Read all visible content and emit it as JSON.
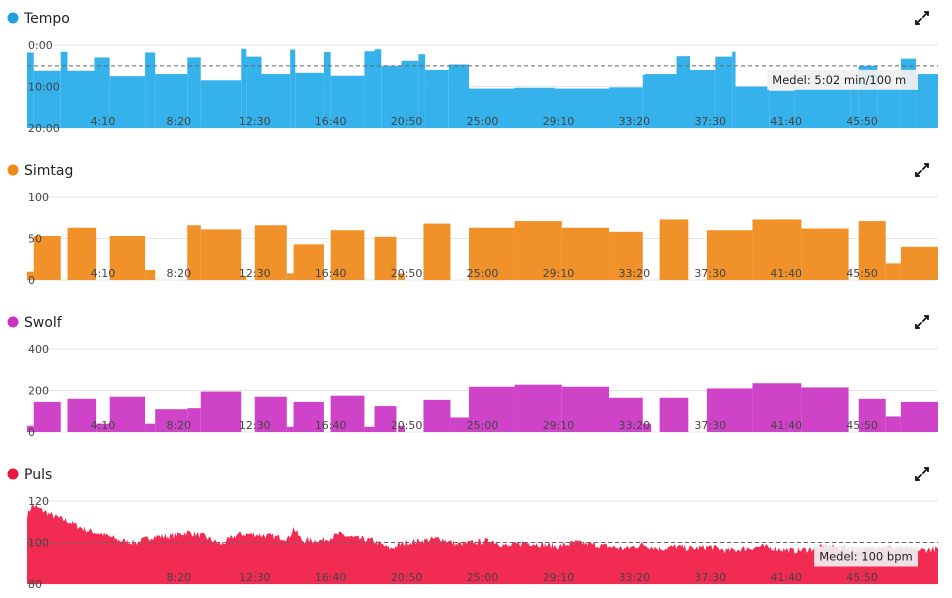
{
  "chart_data": [
    {
      "type": "bar",
      "title": "Tempo",
      "color": "#35b2ec",
      "marker_color": "#1da0e0",
      "y_inverted": true,
      "ylim": [
        0,
        20
      ],
      "y_ticks": [
        "0:00",
        "10:00",
        "20:00"
      ],
      "x_range": [
        0,
        54
      ],
      "x_ticks": [
        "4:10",
        "8:20",
        "12:30",
        "16:40",
        "20:50",
        "25:00",
        "29:10",
        "33:20",
        "37:30",
        "41:40",
        "45:50"
      ],
      "average": {
        "value": 5.03,
        "label": "Medel: 5:02 min/100 m"
      },
      "segments": [
        [
          0,
          0.4,
          1.8
        ],
        [
          0.4,
          2.0,
          6.2
        ],
        [
          2.0,
          2.4,
          1.6
        ],
        [
          2.4,
          4.0,
          6.2
        ],
        [
          4.0,
          4.9,
          3.0
        ],
        [
          4.9,
          7.0,
          7.5
        ],
        [
          7.0,
          7.6,
          1.8
        ],
        [
          7.6,
          9.5,
          7.0
        ],
        [
          9.5,
          10.3,
          3.0
        ],
        [
          10.3,
          12.7,
          8.5
        ],
        [
          12.7,
          13.0,
          0.9
        ],
        [
          13.0,
          13.9,
          2.8
        ],
        [
          13.9,
          15.6,
          7.0
        ],
        [
          15.6,
          15.9,
          1.1
        ],
        [
          15.9,
          17.6,
          6.7
        ],
        [
          17.6,
          18.0,
          1.7
        ],
        [
          18.0,
          20.0,
          7.4
        ],
        [
          20.0,
          20.6,
          1.5
        ],
        [
          20.6,
          21.0,
          1.0
        ],
        [
          21.0,
          22.2,
          5.0
        ],
        [
          22.2,
          23.2,
          3.8
        ],
        [
          23.2,
          23.6,
          2.2
        ],
        [
          23.6,
          25.0,
          6.0
        ],
        [
          25.0,
          26.2,
          4.7
        ],
        [
          26.2,
          28.9,
          10.5
        ],
        [
          28.9,
          31.3,
          10.3
        ],
        [
          31.3,
          34.5,
          10.5
        ],
        [
          34.5,
          36.5,
          10.2
        ],
        [
          36.5,
          36.6,
          7.2
        ],
        [
          36.6,
          38.5,
          7.0
        ],
        [
          38.5,
          39.3,
          2.7
        ],
        [
          39.3,
          40.8,
          6.0
        ],
        [
          40.8,
          41.8,
          2.8
        ],
        [
          41.8,
          42.0,
          1.6
        ],
        [
          42.0,
          44.0,
          10.0
        ],
        [
          44.0,
          45.5,
          11.0
        ],
        [
          45.5,
          48.8,
          10.7
        ],
        [
          48.8,
          49.3,
          10.5
        ],
        [
          49.3,
          50.4,
          5.0
        ],
        [
          50.4,
          51.8,
          10.5
        ],
        [
          51.8,
          52.7,
          3.3
        ],
        [
          52.7,
          54.0,
          7.0
        ]
      ]
    },
    {
      "type": "bar",
      "title": "Simtag",
      "color": "#f0912a",
      "marker_color": "#ef8a1a",
      "y_inverted": false,
      "ylim": [
        0,
        100
      ],
      "y_ticks": [
        "0",
        "50",
        "100"
      ],
      "x_range": [
        0,
        54
      ],
      "x_ticks": [
        "4:10",
        "8:20",
        "12:30",
        "16:40",
        "20:50",
        "25:00",
        "29:10",
        "33:20",
        "37:30",
        "41:40",
        "45:50"
      ],
      "segments": [
        [
          0,
          0.4,
          10
        ],
        [
          0.4,
          2.0,
          53
        ],
        [
          2.4,
          4.1,
          63
        ],
        [
          4.9,
          7.0,
          53
        ],
        [
          7.0,
          7.6,
          12
        ],
        [
          9.5,
          10.3,
          66
        ],
        [
          10.3,
          12.7,
          61
        ],
        [
          12.7,
          13.0,
          5
        ],
        [
          13.5,
          15.4,
          66
        ],
        [
          15.4,
          15.8,
          8
        ],
        [
          15.8,
          17.6,
          43
        ],
        [
          18.0,
          20.0,
          60
        ],
        [
          20.6,
          21.9,
          52
        ],
        [
          22.0,
          22.4,
          8
        ],
        [
          23.5,
          25.1,
          68
        ],
        [
          26.2,
          28.9,
          63
        ],
        [
          28.9,
          31.7,
          71
        ],
        [
          31.7,
          34.5,
          63
        ],
        [
          34.5,
          36.5,
          58
        ],
        [
          37.5,
          39.2,
          73
        ],
        [
          40.3,
          43.0,
          60
        ],
        [
          43.0,
          45.9,
          73
        ],
        [
          45.9,
          48.7,
          62
        ],
        [
          49.3,
          50.9,
          71
        ],
        [
          50.9,
          51.8,
          20
        ],
        [
          51.8,
          54.0,
          40
        ]
      ]
    },
    {
      "type": "bar",
      "title": "Swolf",
      "color": "#cf43c9",
      "marker_color": "#c932c3",
      "y_inverted": false,
      "ylim": [
        0,
        400
      ],
      "y_ticks": [
        "0",
        "200",
        "400"
      ],
      "x_range": [
        0,
        54
      ],
      "x_ticks": [
        "4:10",
        "8:20",
        "12:30",
        "16:40",
        "20:50",
        "25:00",
        "29:10",
        "33:20",
        "37:30",
        "41:40",
        "45:50"
      ],
      "segments": [
        [
          0,
          0.4,
          30
        ],
        [
          0.4,
          2.0,
          145
        ],
        [
          2.4,
          4.1,
          160
        ],
        [
          4.1,
          4.9,
          40
        ],
        [
          4.9,
          7.0,
          170
        ],
        [
          7.0,
          7.6,
          40
        ],
        [
          7.6,
          9.5,
          110
        ],
        [
          9.5,
          10.3,
          115
        ],
        [
          10.3,
          12.7,
          195
        ],
        [
          13.5,
          15.4,
          170
        ],
        [
          15.4,
          15.8,
          25
        ],
        [
          15.8,
          17.6,
          145
        ],
        [
          18.0,
          20.0,
          175
        ],
        [
          20.0,
          20.6,
          25
        ],
        [
          20.6,
          21.9,
          125
        ],
        [
          22.0,
          22.4,
          30
        ],
        [
          23.5,
          25.1,
          155
        ],
        [
          25.1,
          26.2,
          70
        ],
        [
          26.2,
          28.9,
          218
        ],
        [
          28.9,
          31.7,
          228
        ],
        [
          31.7,
          34.5,
          218
        ],
        [
          34.5,
          36.5,
          165
        ],
        [
          36.5,
          37.0,
          40
        ],
        [
          37.5,
          39.2,
          165
        ],
        [
          40.3,
          43.0,
          210
        ],
        [
          43.0,
          45.9,
          235
        ],
        [
          45.9,
          48.7,
          215
        ],
        [
          49.3,
          50.9,
          160
        ],
        [
          50.9,
          51.8,
          75
        ],
        [
          51.8,
          54.0,
          145
        ]
      ]
    },
    {
      "type": "area",
      "title": "Puls",
      "color": "#f22b52",
      "marker_color": "#e8173f",
      "ylim": [
        80,
        120
      ],
      "y_ticks": [
        "80",
        "100",
        "120"
      ],
      "x_range": [
        0,
        54
      ],
      "x_ticks": [
        "8:20",
        "12:30",
        "16:40",
        "20:50",
        "25:00",
        "29:10",
        "33:20",
        "37:30",
        "41:40",
        "45:50"
      ],
      "average": {
        "value": 100,
        "label": "Medel: 100 bpm"
      },
      "points": [
        [
          0,
          113
        ],
        [
          0.3,
          118
        ],
        [
          0.8,
          116
        ],
        [
          1.5,
          113
        ],
        [
          2.5,
          110
        ],
        [
          3.5,
          106
        ],
        [
          4.5,
          104
        ],
        [
          5.5,
          101
        ],
        [
          6.5,
          100
        ],
        [
          7.5,
          103
        ],
        [
          8.5,
          103
        ],
        [
          9.5,
          105
        ],
        [
          10.5,
          103
        ],
        [
          11.5,
          99
        ],
        [
          12.5,
          104
        ],
        [
          13.5,
          104
        ],
        [
          14.5,
          103
        ],
        [
          15.5,
          102
        ],
        [
          15.8,
          107
        ],
        [
          16.3,
          101
        ],
        [
          17.5,
          101
        ],
        [
          18.5,
          104
        ],
        [
          19.5,
          102
        ],
        [
          20.5,
          101
        ],
        [
          21.5,
          97
        ],
        [
          22.5,
          100
        ],
        [
          23.5,
          101
        ],
        [
          24.5,
          102
        ],
        [
          25.5,
          99
        ],
        [
          26.5,
          100
        ],
        [
          27.5,
          101
        ],
        [
          28.5,
          98
        ],
        [
          29.5,
          100
        ],
        [
          30.5,
          99
        ],
        [
          31.5,
          98
        ],
        [
          32.5,
          100
        ],
        [
          33.5,
          99
        ],
        [
          34.5,
          98
        ],
        [
          35.5,
          97
        ],
        [
          36.5,
          99
        ],
        [
          37.5,
          97
        ],
        [
          38.5,
          98
        ],
        [
          39.5,
          97
        ],
        [
          40.5,
          98
        ],
        [
          41.5,
          96
        ],
        [
          42.5,
          97
        ],
        [
          43.5,
          98
        ],
        [
          44.5,
          97
        ],
        [
          45.5,
          96
        ],
        [
          46.5,
          97
        ],
        [
          47.5,
          98
        ],
        [
          48.5,
          97
        ],
        [
          49.5,
          96
        ],
        [
          50.5,
          98
        ],
        [
          51.5,
          97
        ],
        [
          52.5,
          96
        ],
        [
          54,
          97
        ]
      ]
    }
  ]
}
